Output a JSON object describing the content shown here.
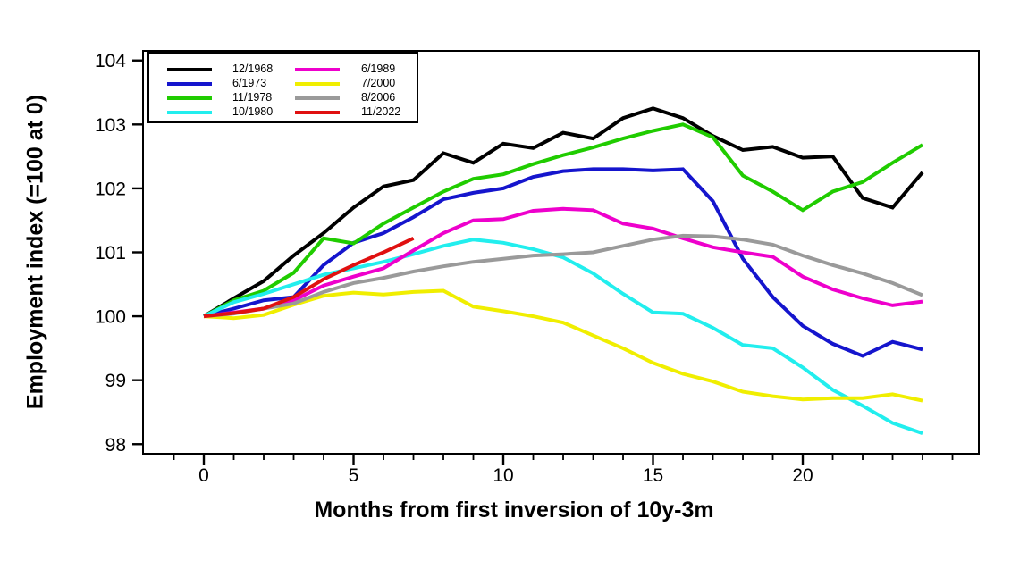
{
  "chart_data": {
    "type": "line",
    "title": "",
    "xlabel": "Months from first inversion of 10y-3m",
    "ylabel": "Employment index (=100 at 0)",
    "xlim": [
      -2.03,
      25.88
    ],
    "ylim": [
      97.85,
      104.15
    ],
    "x_ticks_major": [
      0,
      5,
      10,
      15,
      20
    ],
    "x_minor_every_month": true,
    "x_minor_range": [
      -1,
      25
    ],
    "y_ticks": [
      98,
      99,
      100,
      101,
      102,
      103,
      104
    ],
    "grid": false,
    "legend_position": "top-left-two-columns",
    "x_unit": "months",
    "series": [
      {
        "name": "12/1968",
        "color": "#000000",
        "values": [
          100,
          100.28,
          100.55,
          100.95,
          101.3,
          101.7,
          102.03,
          102.13,
          102.55,
          102.4,
          102.7,
          102.63,
          102.87,
          102.78,
          103.1,
          103.25,
          103.1,
          102.82,
          102.6,
          102.65,
          102.48,
          102.5,
          101.85,
          101.7,
          102.25
        ]
      },
      {
        "name": "6/1973",
        "color": "#1515cd",
        "values": [
          100,
          100.12,
          100.25,
          100.3,
          100.8,
          101.15,
          101.3,
          101.55,
          101.83,
          101.93,
          102.0,
          102.18,
          102.27,
          102.3,
          102.3,
          102.28,
          102.3,
          101.8,
          100.9,
          100.3,
          99.85,
          99.57,
          99.38,
          99.6,
          99.48
        ]
      },
      {
        "name": "11/1978",
        "color": "#20cc00",
        "values": [
          100,
          100.25,
          100.4,
          100.68,
          101.22,
          101.14,
          101.45,
          101.7,
          101.95,
          102.15,
          102.22,
          102.38,
          102.52,
          102.64,
          102.78,
          102.9,
          103.0,
          102.8,
          102.2,
          101.95,
          101.66,
          101.95,
          102.1,
          102.4,
          102.68
        ]
      },
      {
        "name": "10/1980",
        "color": "#22eeee",
        "values": [
          100,
          100.22,
          100.35,
          100.5,
          100.65,
          100.75,
          100.85,
          100.97,
          101.1,
          101.2,
          101.15,
          101.05,
          100.92,
          100.67,
          100.35,
          100.06,
          100.04,
          99.82,
          99.55,
          99.5,
          99.2,
          98.85,
          98.6,
          98.33,
          98.17
        ]
      },
      {
        "name": "6/1989",
        "color": "#ee00cc",
        "values": [
          100,
          100.06,
          100.12,
          100.25,
          100.48,
          100.62,
          100.75,
          101.03,
          101.3,
          101.5,
          101.52,
          101.65,
          101.68,
          101.66,
          101.45,
          101.37,
          101.22,
          101.08,
          101.0,
          100.93,
          100.62,
          100.42,
          100.28,
          100.17,
          100.23
        ]
      },
      {
        "name": "7/2000",
        "color": "#f0ee00",
        "values": [
          100,
          99.97,
          100.02,
          100.18,
          100.32,
          100.37,
          100.34,
          100.38,
          100.4,
          100.15,
          100.08,
          100.0,
          99.9,
          99.7,
          99.5,
          99.27,
          99.1,
          98.98,
          98.82,
          98.75,
          98.7,
          98.72,
          98.72,
          98.78,
          98.68
        ]
      },
      {
        "name": "8/2006",
        "color": "#9a9a9a",
        "values": [
          100,
          100.04,
          100.12,
          100.2,
          100.38,
          100.52,
          100.6,
          100.7,
          100.78,
          100.85,
          100.9,
          100.95,
          100.97,
          101.0,
          101.1,
          101.2,
          101.26,
          101.25,
          101.2,
          101.12,
          100.95,
          100.8,
          100.67,
          100.52,
          100.33
        ]
      },
      {
        "name": "11/2022",
        "color": "#e01010",
        "values": [
          100,
          100.05,
          100.12,
          100.3,
          100.58,
          100.8,
          101.0,
          101.22
        ]
      }
    ]
  }
}
